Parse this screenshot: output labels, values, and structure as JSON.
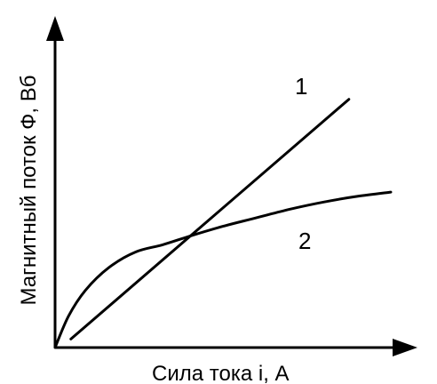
{
  "chart_data": {
    "type": "line",
    "title": "",
    "xlabel": "Сила тока i, А",
    "ylabel": "Магнитный поток Ф, Вб",
    "xlim": [
      0,
      10
    ],
    "ylim": [
      0,
      10
    ],
    "grid": false,
    "legend": "none",
    "tick_labels": false,
    "series": [
      {
        "name": "1",
        "color": "#000000",
        "x": [
          0.47,
          8.75
        ],
        "y": [
          0.3,
          8.7
        ]
      },
      {
        "name": "2",
        "color": "#000000",
        "x": [
          0.0,
          0.4,
          0.9,
          1.6,
          2.4,
          3.2,
          4.0,
          5.0,
          6.0,
          7.0,
          8.0,
          9.0,
          10.0
        ],
        "y": [
          0.0,
          1.1,
          2.0,
          2.8,
          3.35,
          3.6,
          3.9,
          4.25,
          4.55,
          4.85,
          5.1,
          5.3,
          5.45
        ]
      }
    ]
  }
}
